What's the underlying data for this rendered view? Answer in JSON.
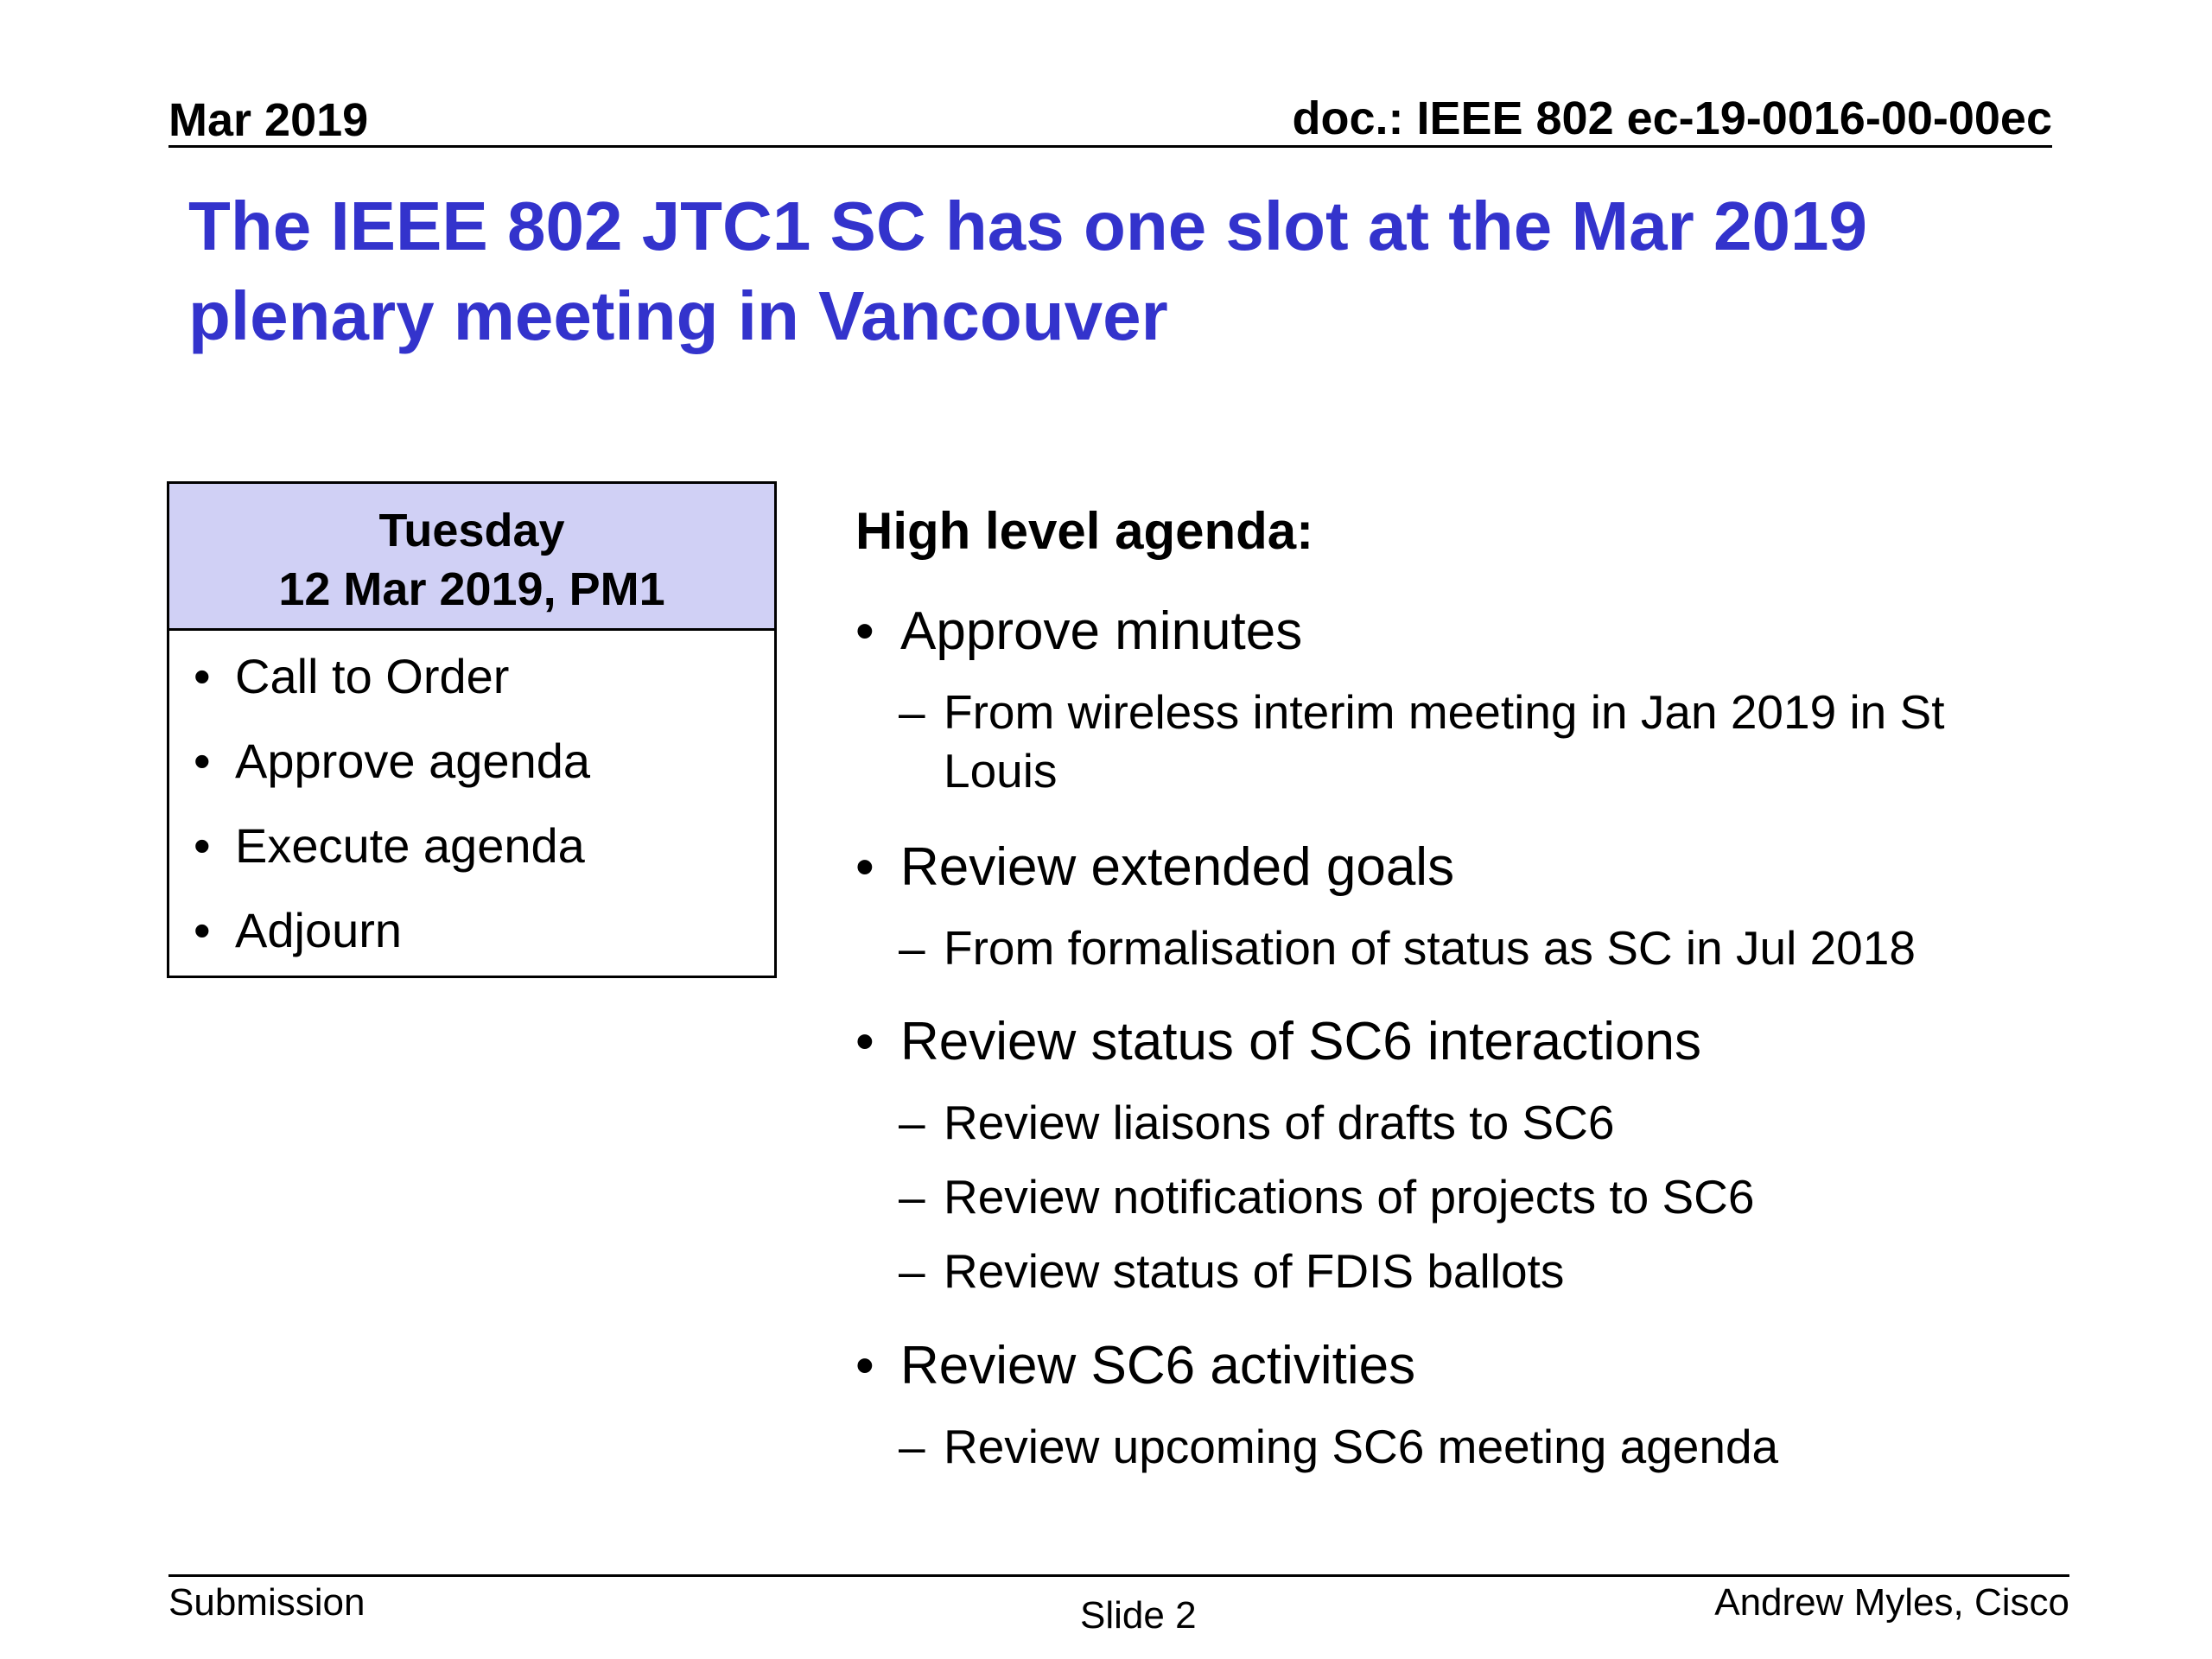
{
  "header": {
    "date": "Mar 2019",
    "doc_id": "doc.: IEEE 802 ec-19-0016-00-00ec"
  },
  "title": {
    "line1": "The IEEE 802 JTC1 SC has one slot at the Mar 2019",
    "line2": "plenary meeting in Vancouver"
  },
  "schedule_box": {
    "day": "Tuesday",
    "date_slot": "12 Mar 2019, PM1",
    "items": [
      "Call to Order",
      "Approve agenda",
      "Execute agenda",
      "Adjourn"
    ]
  },
  "agenda": {
    "heading": "High level agenda:",
    "items": [
      {
        "label": "Approve minutes",
        "subitems": [
          {
            "line1": "From wireless interim meeting in Jan 2019 in St",
            "line2": "Louis"
          }
        ]
      },
      {
        "label": "Review extended goals",
        "subitems": [
          {
            "line1": "From formalisation of status as SC in Jul 2018"
          }
        ]
      },
      {
        "label": "Review status of SC6 interactions",
        "subitems": [
          {
            "line1": "Review liaisons of drafts to SC6"
          },
          {
            "line1": "Review notifications of projects to SC6"
          },
          {
            "line1": "Review status of FDIS ballots"
          }
        ]
      },
      {
        "label": "Review SC6 activities",
        "subitems": [
          {
            "line1": "Review upcoming SC6 meeting agenda"
          }
        ]
      }
    ]
  },
  "footer": {
    "left": "Submission",
    "center": "Slide 2",
    "right": "Andrew Myles, Cisco"
  },
  "colors": {
    "title": "#3333cc",
    "box_header_bg": "#d0d0f5"
  }
}
